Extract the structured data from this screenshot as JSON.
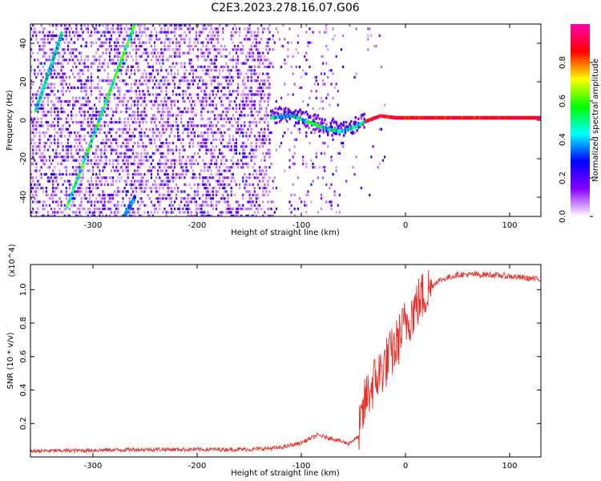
{
  "title": "C2E3.2023.278.16.07.G06",
  "chart_data": [
    {
      "type": "heatmap",
      "xlabel": "Height of straight line (km)",
      "ylabel": "Frequency (Hz)",
      "xlim": [
        -360,
        130
      ],
      "ylim": [
        -50,
        50
      ],
      "xticks": [
        -300,
        -200,
        -100,
        0,
        100
      ],
      "yticks": [
        -40,
        -20,
        0,
        20,
        40
      ],
      "colorbar": {
        "label": "Normalized spectral amplitude",
        "range": [
          0,
          1
        ],
        "ticks": [
          0.0,
          0.2,
          0.4,
          0.6,
          0.8
        ],
        "colormap": [
          "#ffffff",
          "#8800ff",
          "#0000ff",
          "#00ffff",
          "#00ff00",
          "#ffff00",
          "#ff0000",
          "#ff00aa"
        ]
      },
      "features": [
        {
          "kind": "carrier",
          "points": [
            [
              -130,
              1
            ],
            [
              -110,
              2
            ],
            [
              -90,
              -2
            ],
            [
              -75,
              -5
            ],
            [
              -62,
              -6
            ],
            [
              -50,
              -4
            ],
            [
              -40,
              -1
            ],
            [
              -25,
              2
            ],
            [
              -10,
              1
            ],
            [
              130,
              1
            ]
          ],
          "amplitude": 0.9
        },
        {
          "kind": "diagonal",
          "from": [
            -355,
            5
          ],
          "to": [
            -330,
            45
          ],
          "amplitude": 0.55
        },
        {
          "kind": "diagonal",
          "from": [
            -325,
            -45
          ],
          "to": [
            -260,
            50
          ],
          "amplitude": 0.65
        },
        {
          "kind": "diagonal",
          "from": [
            -270,
            -50
          ],
          "to": [
            -260,
            -40
          ],
          "amplitude": 0.45
        }
      ]
    },
    {
      "type": "line",
      "xlabel": "Height of straight line (km)",
      "ylabel": "SNR (10 * v/v)",
      "scale_label": "(x10^4)",
      "xlim": [
        -360,
        130
      ],
      "ylim": [
        0,
        1.15
      ],
      "xticks": [
        -300,
        -200,
        -100,
        0,
        100
      ],
      "yticks": [
        0.2,
        0.4,
        0.6,
        0.8,
        1.0
      ],
      "color": "#e8302a",
      "profile": [
        [
          -360,
          0.035
        ],
        [
          -300,
          0.04
        ],
        [
          -250,
          0.045
        ],
        [
          -200,
          0.045
        ],
        [
          -150,
          0.045
        ],
        [
          -120,
          0.055
        ],
        [
          -100,
          0.085
        ],
        [
          -85,
          0.13
        ],
        [
          -70,
          0.11
        ],
        [
          -55,
          0.08
        ],
        [
          -45,
          0.12
        ],
        [
          -38,
          0.35
        ],
        [
          -30,
          0.45
        ],
        [
          -20,
          0.55
        ],
        [
          -10,
          0.65
        ],
        [
          0,
          0.8
        ],
        [
          15,
          0.95
        ],
        [
          30,
          1.05
        ],
        [
          50,
          1.09
        ],
        [
          80,
          1.09
        ],
        [
          100,
          1.08
        ],
        [
          130,
          1.06
        ]
      ]
    }
  ]
}
